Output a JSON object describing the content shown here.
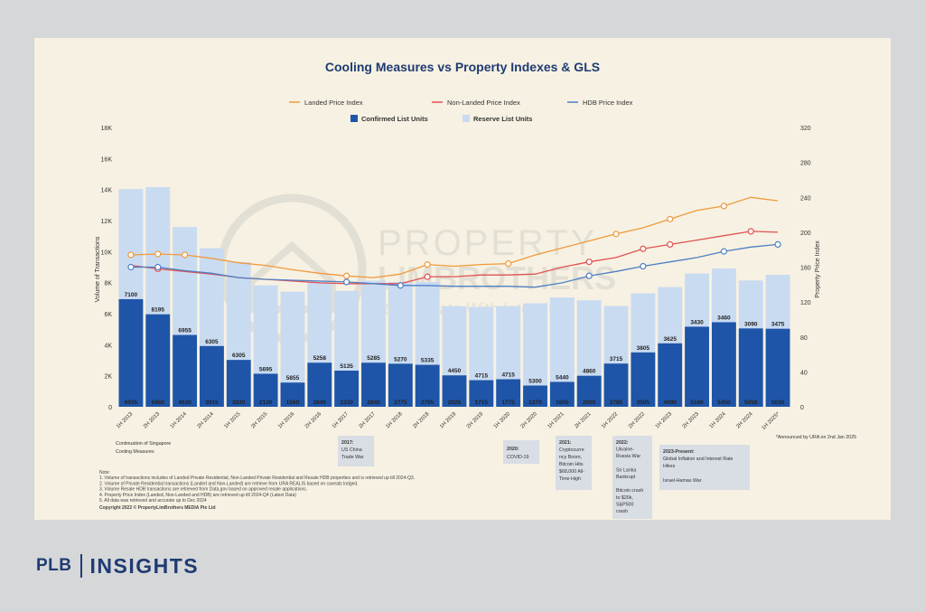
{
  "title": "Cooling Measures vs Property Indexes & GLS",
  "legend": {
    "landed": "Landed Price Index",
    "nonlanded": "Non-Landed Price Index",
    "hdb": "HDB Price Index",
    "confirmed": "Confirmed List Units",
    "reserve": "Reserve List Units"
  },
  "colors": {
    "confirmed": "#1f55a8",
    "reserve": "#c9dbf1",
    "landed": "#ef9a3c",
    "nonlanded": "#e05252",
    "hdb": "#4f7fc4"
  },
  "watermark": {
    "line1": "PROPERTY",
    "line2": "LIMBROTHERS",
    "line3": "Real Estate With Integrity"
  },
  "chart_data": {
    "type": "bar",
    "title": "Cooling Measures vs Property Indexes & GLS",
    "ylabel": "Volume of Transactions",
    "y2label": "Property Price Index",
    "ylim": [
      0,
      18000
    ],
    "y2lim": [
      0,
      320
    ],
    "yticks": [
      "0",
      "2K",
      "4K",
      "6K",
      "8K",
      "10K",
      "12K",
      "14K",
      "16K",
      "18K"
    ],
    "y2ticks": [
      "0",
      "40",
      "80",
      "120",
      "160",
      "200",
      "240",
      "280",
      "320"
    ],
    "categories": [
      "1H 2013",
      "2H 2013",
      "1H 2014",
      "2H 2014",
      "1H 2015",
      "2H 2015",
      "1H 2016",
      "2H 2016",
      "1H 2017",
      "2H 2017",
      "1H 2018",
      "2H 2018",
      "1H 2019",
      "2H 2019",
      "1H 2020",
      "2H 2020",
      "1H 2021",
      "2H 2021",
      "1H 2022",
      "2H 2022",
      "1H 2023",
      "2H 2023",
      "1H 2024",
      "2H 2024",
      "1H 2025*"
    ],
    "stacked": true,
    "series": [
      {
        "name": "Confirmed List Units",
        "kind": "bar",
        "values": [
          6935,
          5960,
          4630,
          3915,
          3020,
          2130,
          1560,
          2840,
          2330,
          2840,
          2775,
          2705,
          2025,
          1715,
          1775,
          1370,
          1605,
          2000,
          2785,
          3505,
          4090,
          5160,
          5450,
          5050,
          5030
        ]
      },
      {
        "name": "Reserve List Units",
        "kind": "bar",
        "values": [
          7100,
          8195,
          6955,
          6305,
          6305,
          5695,
          5855,
          5258,
          5135,
          5285,
          5270,
          5335,
          4450,
          4715,
          4715,
          5300,
          5440,
          4860,
          3715,
          3805,
          3625,
          3430,
          3460,
          3090,
          3475
        ]
      },
      {
        "name": "Landed Price Index",
        "kind": "line",
        "axis": "right",
        "values": [
          174,
          175,
          174,
          170,
          165,
          162,
          157,
          153,
          150,
          148,
          152,
          163,
          161,
          163,
          164,
          174,
          182,
          190,
          198,
          205,
          215,
          225,
          230,
          240,
          236
        ]
      },
      {
        "name": "Non-Landed Price Index",
        "kind": "line",
        "axis": "right",
        "values": [
          162,
          158,
          155,
          152,
          148,
          146,
          144,
          142,
          141,
          141,
          141,
          149,
          149,
          151,
          151,
          152,
          160,
          166,
          171,
          181,
          186,
          191,
          196,
          201,
          200
        ]
      },
      {
        "name": "HDB Price Index",
        "kind": "line",
        "axis": "right",
        "values": [
          160,
          160,
          156,
          153,
          148,
          146,
          145,
          144,
          143,
          141,
          139,
          139,
          138,
          138,
          138,
          137,
          142,
          150,
          155,
          161,
          166,
          171,
          178,
          183,
          186
        ]
      }
    ],
    "markers": {
      "landed": [
        0,
        1,
        2,
        8,
        11,
        14,
        18,
        20,
        22
      ],
      "nonlanded": [
        1,
        11,
        17,
        19,
        20,
        23
      ],
      "hdb": [
        0,
        1,
        8,
        10,
        17,
        19,
        22,
        24
      ]
    }
  },
  "annotations": {
    "cooling": [
      "Continuation of Singapore",
      "Cooling Measures"
    ],
    "ev2017": [
      "2017:",
      "US China",
      "Trade War"
    ],
    "ev2020": [
      "2020:",
      "COVID-19"
    ],
    "ev2021": [
      "2021:",
      "Cryptocurre",
      "ncy Boom,",
      "Bitcoin Hits",
      "$68,000 All-",
      "Time High"
    ],
    "ev2022": [
      "2022:",
      "Ukraine-",
      "Russia War",
      "",
      "Sri Lanka",
      "Bankrupt",
      "",
      "Bitcoin crash",
      "to $20k,",
      "S&P500",
      "crash"
    ],
    "ev2023": [
      "2023-Present:",
      "Global Inflation and Interest Rate",
      "Hikes",
      "",
      "Israel-Hamas War"
    ],
    "announced": "*Announced by URA on 2nd Jan 2025"
  },
  "notes": [
    "Note:",
    "1. Volume of transactions includes of Landed Private Residential, Non-Landed Private Residential and Resale HDB properties and is retrieved up till 2024-Q3.",
    "2. Volume of Private Residential transactions (Landed and Non-Landed) are retrieve from URA REALIS based on caveats lodged.",
    "3. Volume Resale HDB transactions are retrieved from Data.gov based on approved resale applications.",
    "4. Property Price Index (Landed, Non-Landed and HDB) are retrieved up till 2024-Q4 (Latest Data)",
    "5. All data was retrieved and accurate up to Dec 2024"
  ],
  "copyright": "Copyright 2022 © PropertyLimBrothers MEDIA Pte Ltd",
  "brand": {
    "left": "PLB",
    "right": "INSIGHTS"
  }
}
